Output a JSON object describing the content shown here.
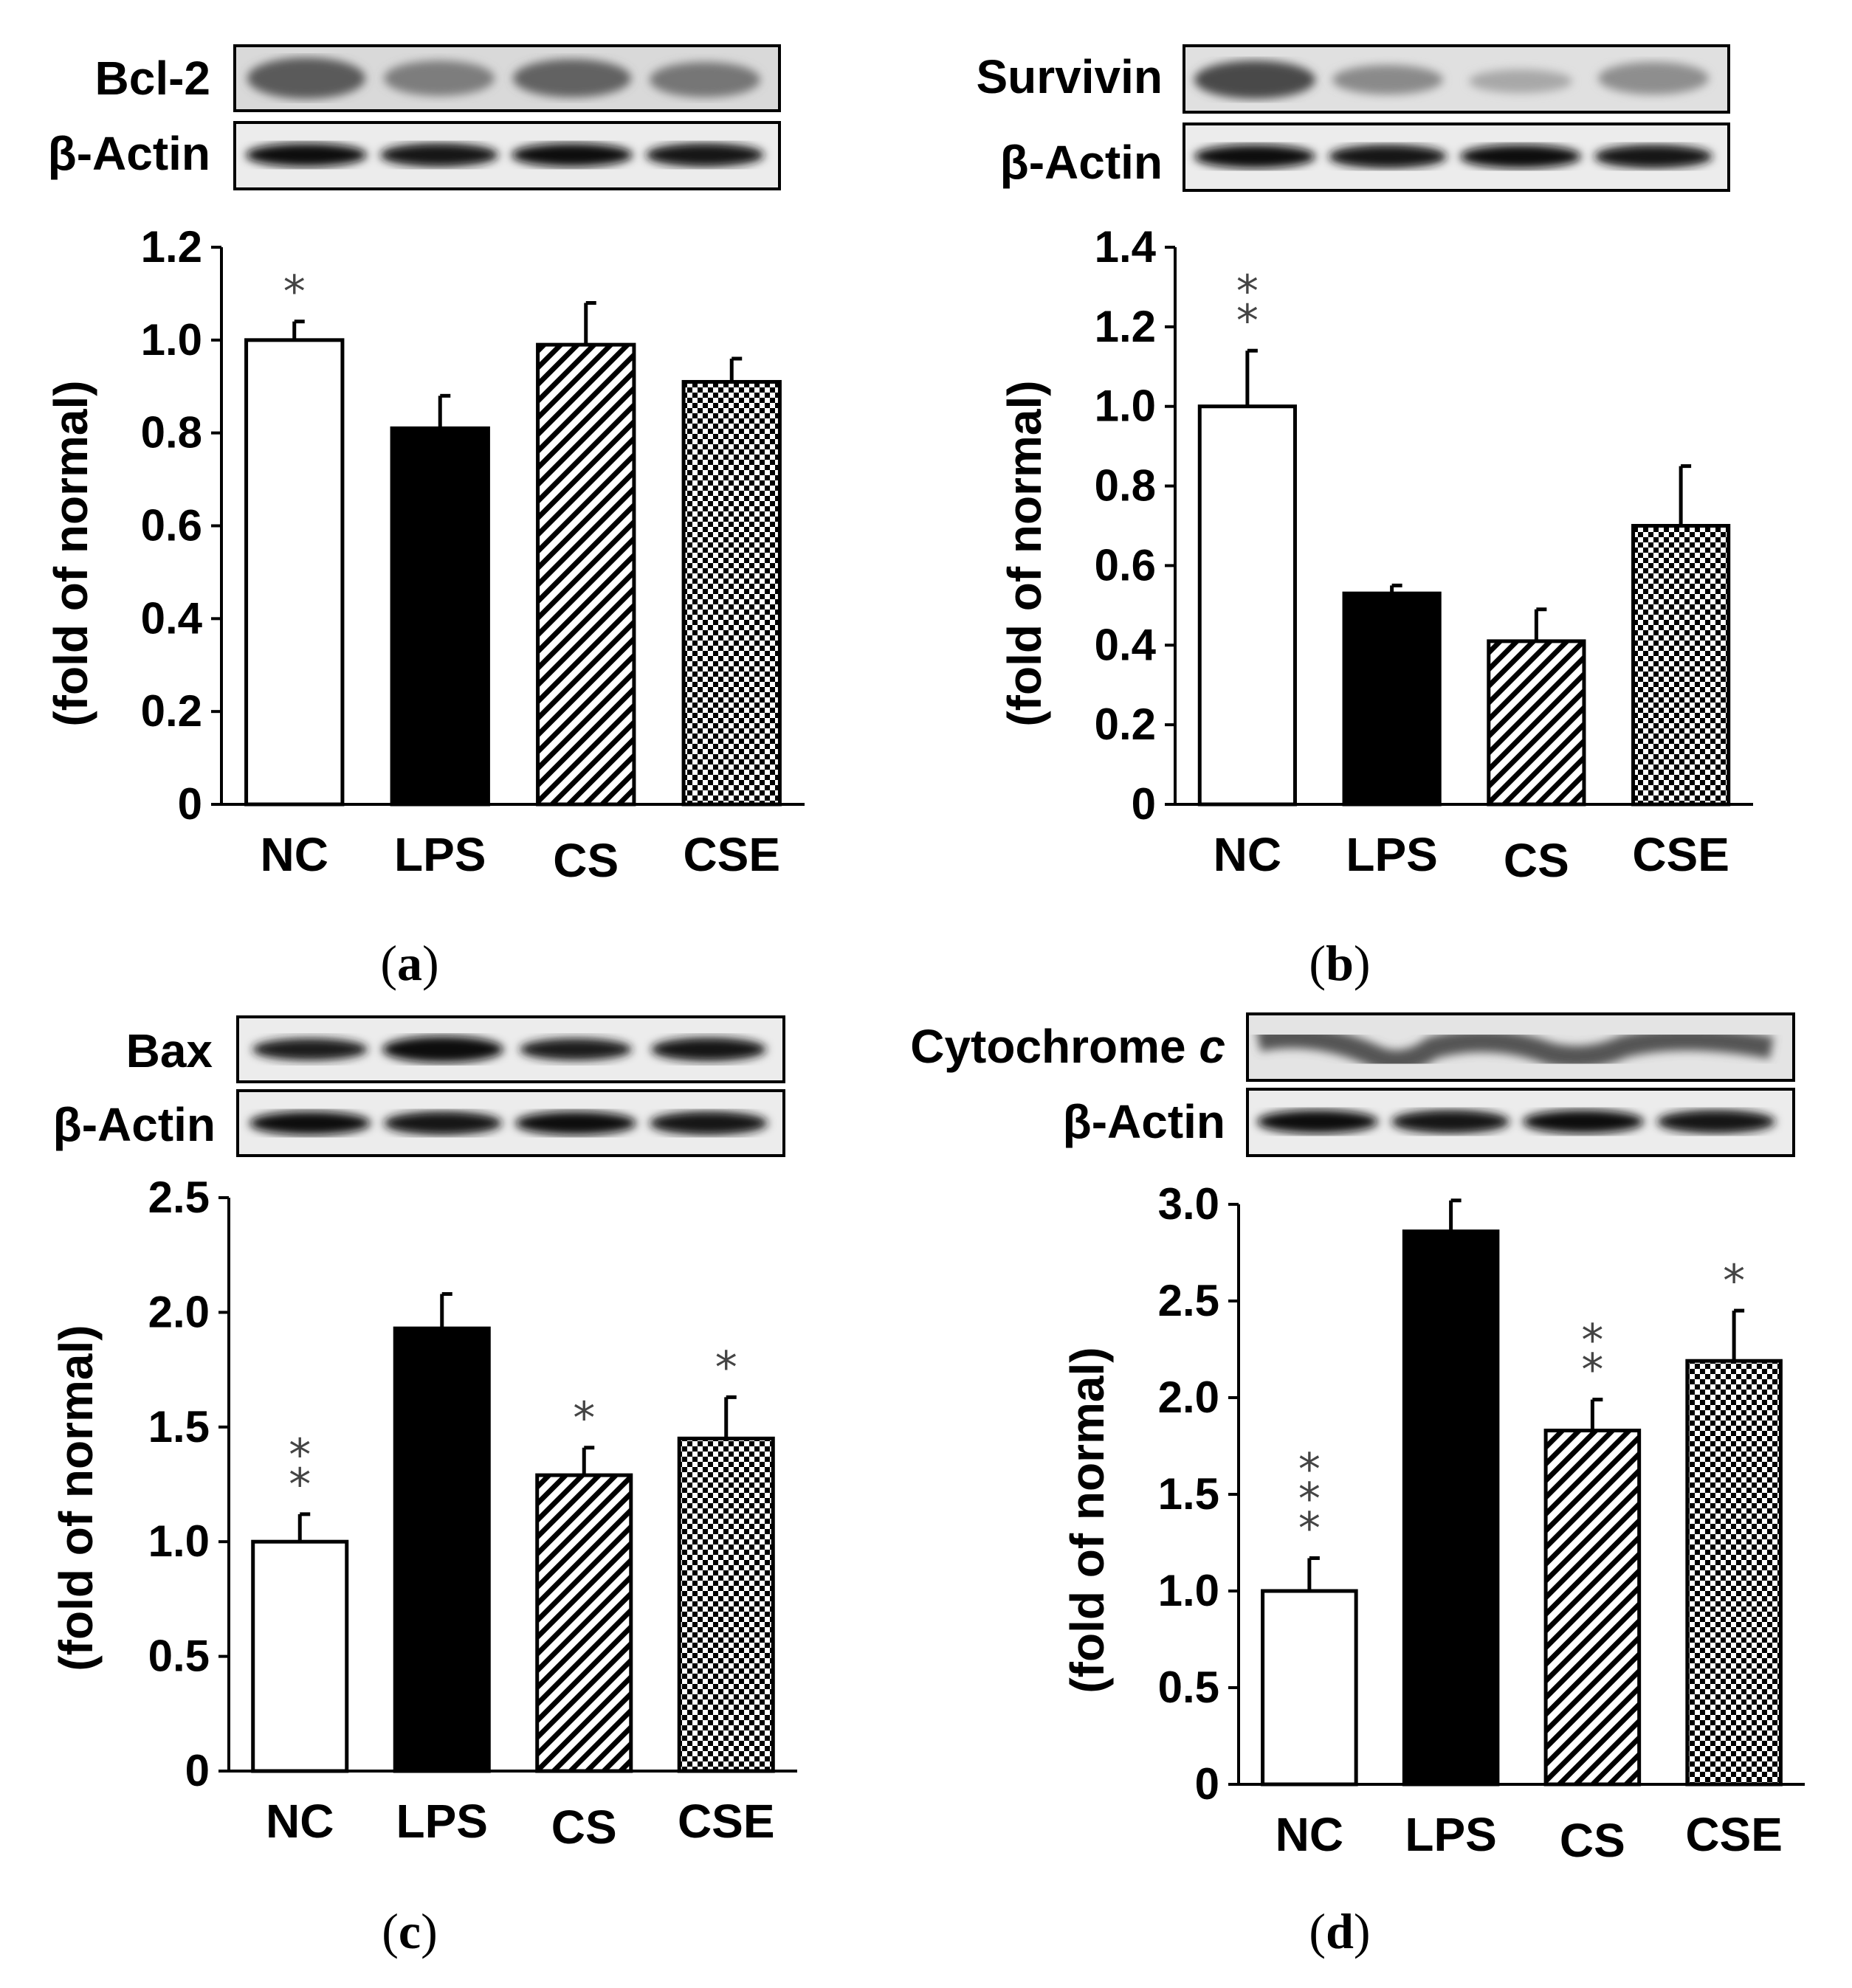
{
  "figure": {
    "panels": [
      {
        "id": "a",
        "caption_letter": "a",
        "blot_labels": {
          "target": "Bcl-2",
          "target_italic": "",
          "control": "β-Actin"
        },
        "chart_data": {
          "type": "bar",
          "categories": [
            "NC",
            "LPS",
            "CS",
            "CSE"
          ],
          "values": [
            1.0,
            0.81,
            0.99,
            0.91
          ],
          "errors": [
            0.04,
            0.07,
            0.09,
            0.05
          ],
          "significance": [
            "*",
            "",
            "",
            ""
          ],
          "patterns": [
            "white",
            "black",
            "diagonal",
            "checker"
          ],
          "ylabel": "(fold of normal)",
          "ylim": [
            0,
            1.2
          ],
          "yticks": [
            "0",
            "0.2",
            "0.4",
            "0.6",
            "0.8",
            "1.0",
            "1.2"
          ]
        }
      },
      {
        "id": "b",
        "caption_letter": "b",
        "blot_labels": {
          "target": "Survivin",
          "target_italic": "",
          "control": "β-Actin"
        },
        "chart_data": {
          "type": "bar",
          "categories": [
            "NC",
            "LPS",
            "CS",
            "CSE"
          ],
          "values": [
            1.0,
            0.53,
            0.41,
            0.7
          ],
          "errors": [
            0.14,
            0.02,
            0.08,
            0.15
          ],
          "significance": [
            "**",
            "",
            "",
            ""
          ],
          "patterns": [
            "white",
            "black",
            "diagonal",
            "checker"
          ],
          "ylabel": "(fold of normal)",
          "ylim": [
            0,
            1.4
          ],
          "yticks": [
            "0",
            "0.2",
            "0.4",
            "0.6",
            "0.8",
            "1.0",
            "1.2",
            "1.4"
          ]
        }
      },
      {
        "id": "c",
        "caption_letter": "c",
        "blot_labels": {
          "target": "Bax",
          "target_italic": "",
          "control": "β-Actin"
        },
        "chart_data": {
          "type": "bar",
          "categories": [
            "NC",
            "LPS",
            "CS",
            "CSE"
          ],
          "values": [
            1.0,
            1.93,
            1.29,
            1.45
          ],
          "errors": [
            0.12,
            0.15,
            0.12,
            0.18
          ],
          "significance": [
            "**",
            "",
            "*",
            "*"
          ],
          "patterns": [
            "white",
            "black",
            "diagonal",
            "checker"
          ],
          "ylabel": "(fold of normal)",
          "ylim": [
            0,
            2.5
          ],
          "yticks": [
            "0",
            "0.5",
            "1.0",
            "1.5",
            "2.0",
            "2.5"
          ]
        }
      },
      {
        "id": "d",
        "caption_letter": "d",
        "blot_labels": {
          "target": "Cytochrome ",
          "target_italic": "c",
          "control": "β-Actin"
        },
        "chart_data": {
          "type": "bar",
          "categories": [
            "NC",
            "LPS",
            "CS",
            "CSE"
          ],
          "values": [
            1.0,
            2.86,
            1.83,
            2.19
          ],
          "errors": [
            0.17,
            0.16,
            0.16,
            0.26
          ],
          "significance": [
            "***",
            "",
            "**",
            "*"
          ],
          "patterns": [
            "white",
            "black",
            "diagonal",
            "checker"
          ],
          "ylabel": "(fold of normal)",
          "ylim": [
            0,
            3.0
          ],
          "yticks": [
            "0",
            "0.5",
            "1.0",
            "1.5",
            "2.0",
            "2.5",
            "3.0"
          ]
        }
      }
    ]
  }
}
